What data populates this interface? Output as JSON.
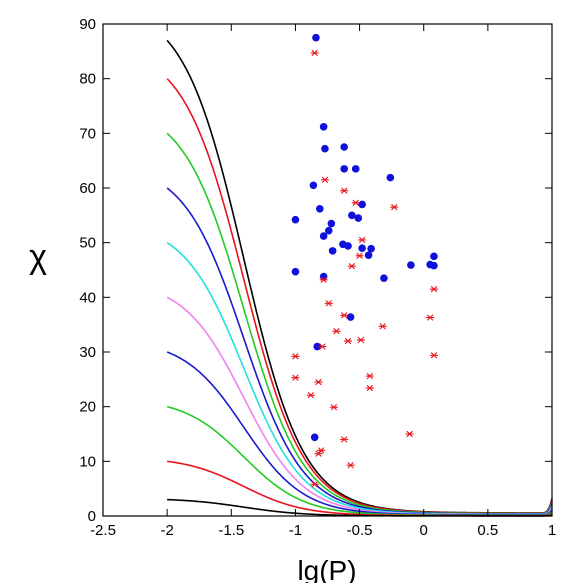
{
  "chart_data": {
    "type": "scatter",
    "xlabel": "lg(P)",
    "ylabel": "χ",
    "xlim": [
      -2.5,
      1
    ],
    "ylim": [
      0,
      90
    ],
    "xticks": [
      -2.5,
      -2,
      -1.5,
      -1,
      -0.5,
      0,
      0.5,
      1
    ],
    "yticks": [
      0,
      10,
      20,
      30,
      40,
      50,
      60,
      70,
      80,
      90
    ],
    "xtick_labels": [
      "-2.5",
      "-2",
      "-1.5",
      "-1",
      "-0.5",
      "0",
      "0.5",
      "1"
    ],
    "ytick_labels": [
      "0",
      "10",
      "20",
      "30",
      "40",
      "50",
      "60",
      "70",
      "80",
      "90"
    ],
    "grid": false,
    "curves": [
      {
        "chi0": 87,
        "color": "#000000"
      },
      {
        "chi0": 80,
        "color": "#e8141c"
      },
      {
        "chi0": 70,
        "color": "#22cc22"
      },
      {
        "chi0": 60,
        "color": "#1a1acc"
      },
      {
        "chi0": 50,
        "color": "#22e0e0"
      },
      {
        "chi0": 40,
        "color": "#ee82ee"
      },
      {
        "chi0": 30,
        "color": "#1a1acc"
      },
      {
        "chi0": 20,
        "color": "#22cc22"
      },
      {
        "chi0": 10,
        "color": "#e8141c"
      },
      {
        "chi0": 3,
        "color": "#000000"
      }
    ],
    "series": [
      {
        "marker": "circle",
        "color": "#1010dd",
        "points": [
          [
            -0.84,
            87.5
          ],
          [
            -0.78,
            71.2
          ],
          [
            -0.62,
            67.5
          ],
          [
            -0.77,
            67.2
          ],
          [
            -0.62,
            63.5
          ],
          [
            -0.53,
            63.5
          ],
          [
            -0.26,
            61.9
          ],
          [
            -0.86,
            60.5
          ],
          [
            -0.81,
            56.2
          ],
          [
            -0.48,
            57.0
          ],
          [
            -0.56,
            55.0
          ],
          [
            -0.51,
            54.5
          ],
          [
            -1.0,
            54.2
          ],
          [
            -0.72,
            53.5
          ],
          [
            -0.74,
            52.2
          ],
          [
            -0.78,
            51.2
          ],
          [
            -0.63,
            49.7
          ],
          [
            -0.59,
            49.4
          ],
          [
            -0.48,
            49.0
          ],
          [
            -0.41,
            48.9
          ],
          [
            -0.71,
            48.5
          ],
          [
            -0.43,
            47.7
          ],
          [
            0.08,
            47.5
          ],
          [
            -0.1,
            45.9
          ],
          [
            0.05,
            46.0
          ],
          [
            0.08,
            45.8
          ],
          [
            -1.0,
            44.7
          ],
          [
            -0.78,
            43.8
          ],
          [
            -0.31,
            43.5
          ],
          [
            -0.57,
            36.4
          ],
          [
            -0.83,
            31.0
          ],
          [
            -0.85,
            14.4
          ]
        ]
      },
      {
        "marker": "asterisk",
        "color": "#e8141c",
        "points": [
          [
            -0.85,
            84.7
          ],
          [
            -0.77,
            61.5
          ],
          [
            -0.62,
            59.5
          ],
          [
            -0.53,
            57.3
          ],
          [
            -0.23,
            56.5
          ],
          [
            -0.48,
            50.5
          ],
          [
            -0.5,
            47.6
          ],
          [
            -0.56,
            45.7
          ],
          [
            -0.78,
            43.2
          ],
          [
            0.08,
            41.5
          ],
          [
            -0.74,
            38.9
          ],
          [
            -0.62,
            36.7
          ],
          [
            0.05,
            36.3
          ],
          [
            -0.32,
            34.7
          ],
          [
            -0.68,
            33.8
          ],
          [
            -0.49,
            32.2
          ],
          [
            -0.59,
            32.0
          ],
          [
            -0.79,
            31.0
          ],
          [
            -1.0,
            29.2
          ],
          [
            0.08,
            29.4
          ],
          [
            -1.0,
            25.3
          ],
          [
            -0.42,
            25.6
          ],
          [
            -0.82,
            24.5
          ],
          [
            -0.42,
            23.4
          ],
          [
            -0.88,
            22.1
          ],
          [
            -0.7,
            19.9
          ],
          [
            -0.11,
            15.0
          ],
          [
            -0.62,
            14.0
          ],
          [
            -0.8,
            12.0
          ],
          [
            -0.82,
            11.4
          ],
          [
            -0.57,
            9.3
          ],
          [
            -0.85,
            5.8
          ]
        ]
      }
    ]
  }
}
